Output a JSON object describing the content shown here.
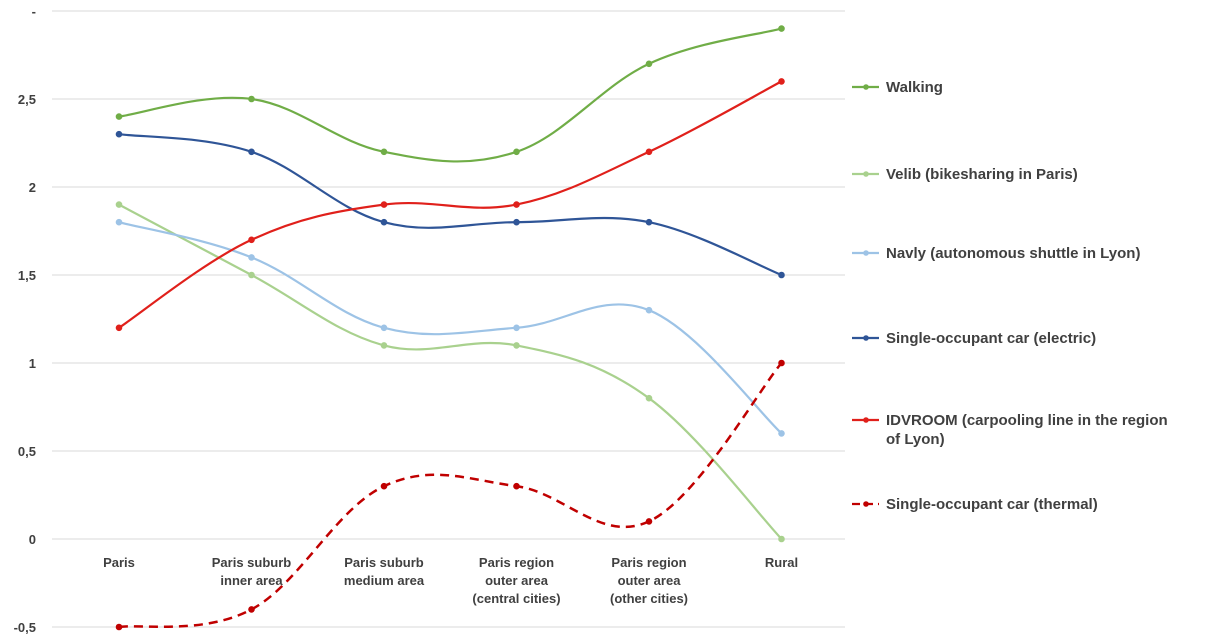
{
  "chart_data": {
    "type": "line",
    "categories": [
      "Paris",
      "Paris suburb inner area",
      "Paris suburb medium area",
      "Paris region outer area (central cities)",
      "Paris region outer area (other cities)",
      "Rural"
    ],
    "ylim": [
      -0.5,
      3
    ],
    "yticks": [
      "-0,5",
      "0",
      "0,5",
      "1",
      "1,5",
      "2",
      "2,5",
      "-"
    ],
    "grid": true,
    "legend_position": "right",
    "smooth": true,
    "series": [
      {
        "name": "Walking",
        "color": "#70ad47",
        "dashed": false,
        "values": [
          2.4,
          2.5,
          2.2,
          2.2,
          2.7,
          2.9
        ]
      },
      {
        "name": "Velib (bikesharing in Paris)",
        "color": "#a9d18e",
        "dashed": false,
        "values": [
          1.9,
          1.5,
          1.1,
          1.1,
          0.8,
          0.0
        ]
      },
      {
        "name": "Navly (autonomous shuttle in Lyon)",
        "color": "#9dc3e6",
        "dashed": false,
        "values": [
          1.8,
          1.6,
          1.2,
          1.2,
          1.3,
          0.6
        ]
      },
      {
        "name": "Single-occupant car (electric)",
        "color": "#2f5597",
        "dashed": false,
        "values": [
          2.3,
          2.2,
          1.8,
          1.8,
          1.8,
          1.5
        ]
      },
      {
        "name": "IDVROOM (carpooling line in the region of Lyon)",
        "color": "#e0201b",
        "dashed": false,
        "values": [
          1.2,
          1.7,
          1.9,
          1.9,
          2.2,
          2.6
        ]
      },
      {
        "name": "Single-occupant car (thermal)",
        "color": "#c00000",
        "dashed": true,
        "values": [
          -0.5,
          -0.4,
          0.3,
          0.3,
          0.1,
          1.0
        ]
      }
    ]
  }
}
